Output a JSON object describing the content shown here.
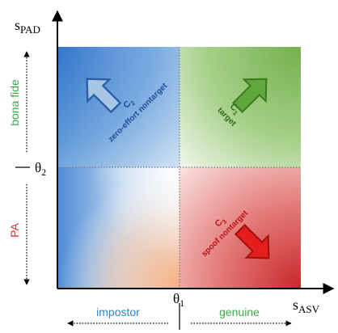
{
  "axes": {
    "y_symbol": "s",
    "y_subscript": "PAD",
    "x_symbol": "s",
    "x_subscript": "ASV",
    "theta1_symbol": "θ",
    "theta1_subscript": "1",
    "theta2_symbol": "θ",
    "theta2_subscript": "2"
  },
  "y_side_labels": {
    "upper": "bona fide",
    "lower": "PA"
  },
  "x_side_labels": {
    "left": "impostor",
    "right": "genuine"
  },
  "regions": [
    {
      "id": "c2",
      "class_letter": "C",
      "class_subscript": "2",
      "description": "zero-effort nontarget",
      "color": "#2f6cc0"
    },
    {
      "id": "c1",
      "class_letter": "C",
      "class_subscript": "1",
      "description": "target",
      "color": "#4c8f2a"
    },
    {
      "id": "c3",
      "class_letter": "C",
      "class_subscript": "3",
      "description": "spoof nontarget",
      "color": "#c01818"
    }
  ],
  "colors": {
    "bona_fide_text": "#3ca84b",
    "pa_text": "#e0312d",
    "impostor_text": "#2f86c9",
    "genuine_text": "#3ca84b",
    "c2_arrow_fill": "#a7c6e6",
    "c2_arrow_stroke": "#2c5ea8",
    "c1_arrow_fill": "#5ea83c",
    "c1_arrow_stroke": "#3c7a20",
    "c3_arrow_fill": "#e51d1d",
    "c3_arrow_stroke": "#9c1010"
  }
}
